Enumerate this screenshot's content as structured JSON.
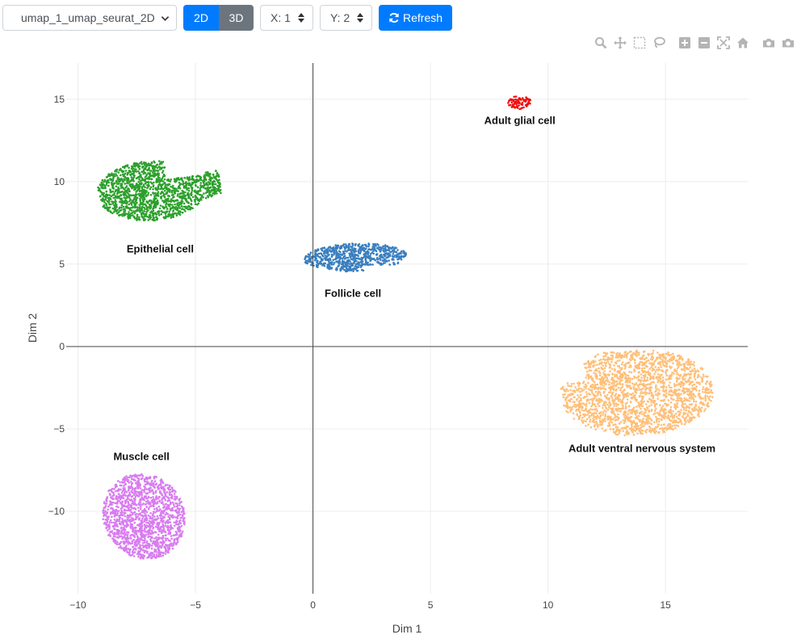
{
  "toolbar": {
    "embedding_select": {
      "value": "umap_1_umap_seurat_2D"
    },
    "btn_2d": "2D",
    "btn_3d": "3D",
    "x_spinner": "X: 1",
    "y_spinner": "Y: 2",
    "refresh": "Refresh"
  },
  "modebar": {
    "icons": [
      "zoom-icon",
      "pan-icon",
      "box-select-icon",
      "lasso-icon",
      "zoom-in-icon",
      "zoom-out-icon",
      "autoscale-icon",
      "reset-axes-icon",
      "camera-icon",
      "camera-icon"
    ]
  },
  "chart_data": {
    "type": "scatter",
    "xlabel": "Dim 1",
    "ylabel": "Dim 2",
    "xlim": [
      -10.5,
      18.5
    ],
    "ylim": [
      -15,
      17.2
    ],
    "xticks": [
      -10,
      -5,
      0,
      5,
      10,
      15
    ],
    "yticks": [
      -10,
      -5,
      0,
      5,
      10,
      15
    ],
    "tick_labels_x": [
      "−10",
      "−5",
      "0",
      "5",
      "10",
      "15"
    ],
    "tick_labels_y": [
      "−10",
      "−5",
      "0",
      "5",
      "10",
      "15"
    ],
    "grid": true,
    "zero_lines": true,
    "legend": "none",
    "clusters": [
      {
        "name": "Epithelial cell",
        "color": "#2ca02c",
        "center": [
          -6.5,
          9.5
        ],
        "label_pos": [
          -6.5,
          5.7
        ],
        "points": 1500
      },
      {
        "name": "Follicle cell",
        "color": "#3a7fbf",
        "center": [
          1.8,
          5.4
        ],
        "label_pos": [
          1.7,
          3.0
        ],
        "points": 700
      },
      {
        "name": "Adult glial cell",
        "color": "#ee1111",
        "center": [
          8.8,
          14.8
        ],
        "label_pos": [
          8.8,
          13.5
        ],
        "points": 90
      },
      {
        "name": "Adult ventral nervous system",
        "color": "#ffbf79",
        "center": [
          13.8,
          -2.8
        ],
        "label_pos": [
          14.0,
          -6.4
        ],
        "points": 2000
      },
      {
        "name": "Muscle cell",
        "color": "#d87cf0",
        "center": [
          -7.2,
          -10.3
        ],
        "label_pos": [
          -7.3,
          -6.9
        ],
        "points": 1500
      }
    ]
  }
}
